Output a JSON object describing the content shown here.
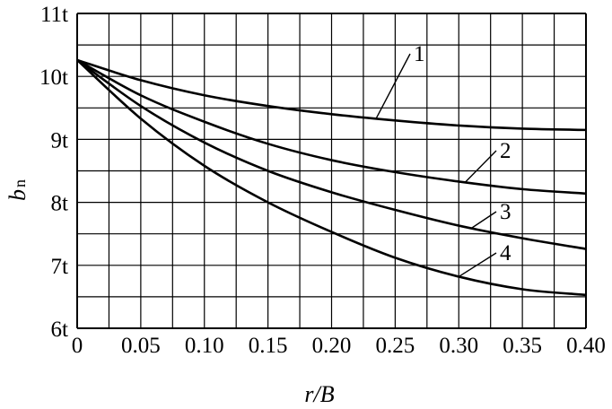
{
  "chart_data": {
    "type": "line",
    "xlabel": "r/B",
    "ylabel_main": "b",
    "ylabel_sub": "n",
    "xlim": [
      0,
      0.4
    ],
    "ylim": [
      6,
      11
    ],
    "x_ticks": [
      "0",
      "0.05",
      "0.10",
      "0.15",
      "0.20",
      "0.25",
      "0.30",
      "0.35",
      "0.40"
    ],
    "y_ticks": [
      "6t",
      "7t",
      "8t",
      "9t",
      "10t",
      "11t"
    ],
    "grid": true,
    "x": [
      0,
      0.05,
      0.1,
      0.15,
      0.2,
      0.25,
      0.3,
      0.35,
      0.4
    ],
    "series": [
      {
        "name": "1",
        "values": [
          10.26,
          9.94,
          9.7,
          9.53,
          9.4,
          9.3,
          9.22,
          9.17,
          9.15
        ]
      },
      {
        "name": "2",
        "values": [
          10.26,
          9.7,
          9.28,
          8.93,
          8.67,
          8.48,
          8.33,
          8.21,
          8.14
        ]
      },
      {
        "name": "3",
        "values": [
          10.26,
          9.53,
          8.95,
          8.5,
          8.16,
          7.88,
          7.63,
          7.43,
          7.26
        ]
      },
      {
        "name": "4",
        "values": [
          10.26,
          9.33,
          8.58,
          8.0,
          7.53,
          7.12,
          6.82,
          6.62,
          6.53
        ]
      }
    ]
  }
}
